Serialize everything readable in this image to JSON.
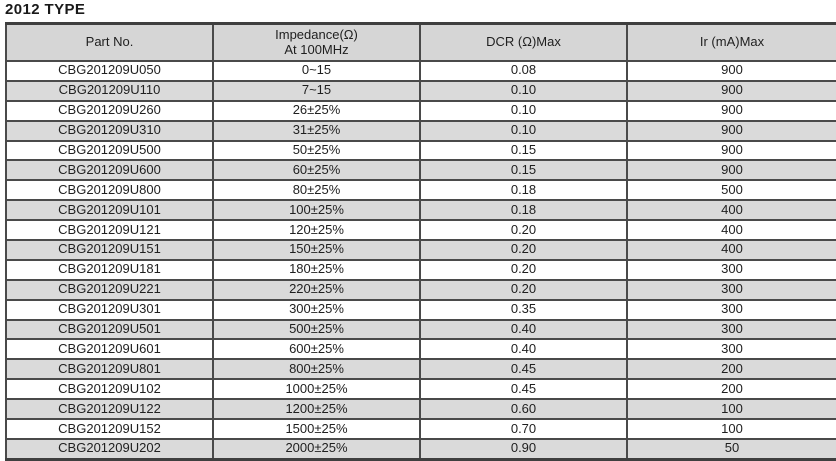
{
  "title": "2012 TYPE",
  "table": {
    "columns": [
      {
        "label": "Part No."
      },
      {
        "label": "Impedance(Ω)",
        "sublabel": "At 100MHz"
      },
      {
        "label": "DCR (Ω)Max"
      },
      {
        "label": "Ir (mA)Max"
      }
    ],
    "rows": [
      {
        "part_no": "CBG201209U050",
        "impedance": "0~15",
        "dcr": "0.08",
        "ir": "900"
      },
      {
        "part_no": "CBG201209U110",
        "impedance": "7~15",
        "dcr": "0.10",
        "ir": "900"
      },
      {
        "part_no": "CBG201209U260",
        "impedance": "26±25%",
        "dcr": "0.10",
        "ir": "900"
      },
      {
        "part_no": "CBG201209U310",
        "impedance": "31±25%",
        "dcr": "0.10",
        "ir": "900"
      },
      {
        "part_no": "CBG201209U500",
        "impedance": "50±25%",
        "dcr": "0.15",
        "ir": "900"
      },
      {
        "part_no": "CBG201209U600",
        "impedance": "60±25%",
        "dcr": "0.15",
        "ir": "900"
      },
      {
        "part_no": "CBG201209U800",
        "impedance": "80±25%",
        "dcr": "0.18",
        "ir": "500"
      },
      {
        "part_no": "CBG201209U101",
        "impedance": "100±25%",
        "dcr": "0.18",
        "ir": "400"
      },
      {
        "part_no": "CBG201209U121",
        "impedance": "120±25%",
        "dcr": "0.20",
        "ir": "400"
      },
      {
        "part_no": "CBG201209U151",
        "impedance": "150±25%",
        "dcr": "0.20",
        "ir": "400"
      },
      {
        "part_no": "CBG201209U181",
        "impedance": "180±25%",
        "dcr": "0.20",
        "ir": "300"
      },
      {
        "part_no": "CBG201209U221",
        "impedance": "220±25%",
        "dcr": "0.20",
        "ir": "300"
      },
      {
        "part_no": "CBG201209U301",
        "impedance": "300±25%",
        "dcr": "0.35",
        "ir": "300"
      },
      {
        "part_no": "CBG201209U501",
        "impedance": "500±25%",
        "dcr": "0.40",
        "ir": "300"
      },
      {
        "part_no": "CBG201209U601",
        "impedance": "600±25%",
        "dcr": "0.40",
        "ir": "300"
      },
      {
        "part_no": "CBG201209U801",
        "impedance": "800±25%",
        "dcr": "0.45",
        "ir": "200"
      },
      {
        "part_no": "CBG201209U102",
        "impedance": "1000±25%",
        "dcr": "0.45",
        "ir": "200"
      },
      {
        "part_no": "CBG201209U122",
        "impedance": "1200±25%",
        "dcr": "0.60",
        "ir": "100"
      },
      {
        "part_no": "CBG201209U152",
        "impedance": "1500±25%",
        "dcr": "0.70",
        "ir": "100"
      },
      {
        "part_no": "CBG201209U202",
        "impedance": "2000±25%",
        "dcr": "0.90",
        "ir": "50"
      }
    ],
    "colors": {
      "row_alt_bg": "#dadada",
      "header_bg": "#d6d6d6",
      "border": "#4a4a4a",
      "text": "#1f1f1f"
    }
  }
}
